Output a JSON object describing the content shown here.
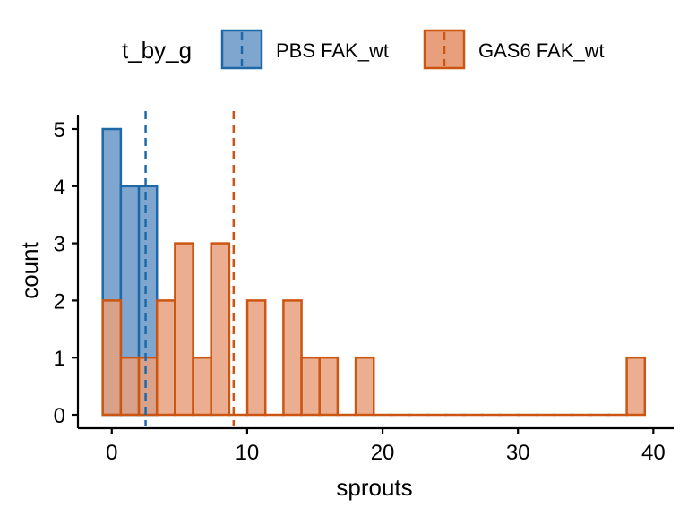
{
  "chart_data": {
    "type": "histogram",
    "xlabel": "sprouts",
    "ylabel": "count",
    "xlim": [
      -2.5,
      41.5
    ],
    "ylim": [
      0,
      5.2
    ],
    "x_ticks": [
      0,
      10,
      20,
      30,
      40
    ],
    "y_ticks": [
      0,
      1,
      2,
      3,
      4,
      5
    ],
    "bin_width": 1.3345,
    "bin_start": -0.6672,
    "legend": {
      "title": "t_by_g",
      "position": "top"
    },
    "series": [
      {
        "name": "PBS FAK_wt",
        "color": "#1f68a8",
        "fill": "#7ea6cf",
        "mean": 2.5,
        "counts": [
          5,
          4,
          4
        ]
      },
      {
        "name": "GAS6 FAK_wt",
        "color": "#cc5511",
        "fill": "#e8a07c",
        "mean": 9.0,
        "counts": [
          2,
          1,
          1,
          2,
          3,
          1,
          3,
          0,
          2,
          0,
          2,
          1,
          1,
          0,
          1,
          0,
          0,
          0,
          0,
          0,
          0,
          0,
          0,
          0,
          0,
          0,
          0,
          0,
          0,
          1
        ]
      }
    ]
  }
}
